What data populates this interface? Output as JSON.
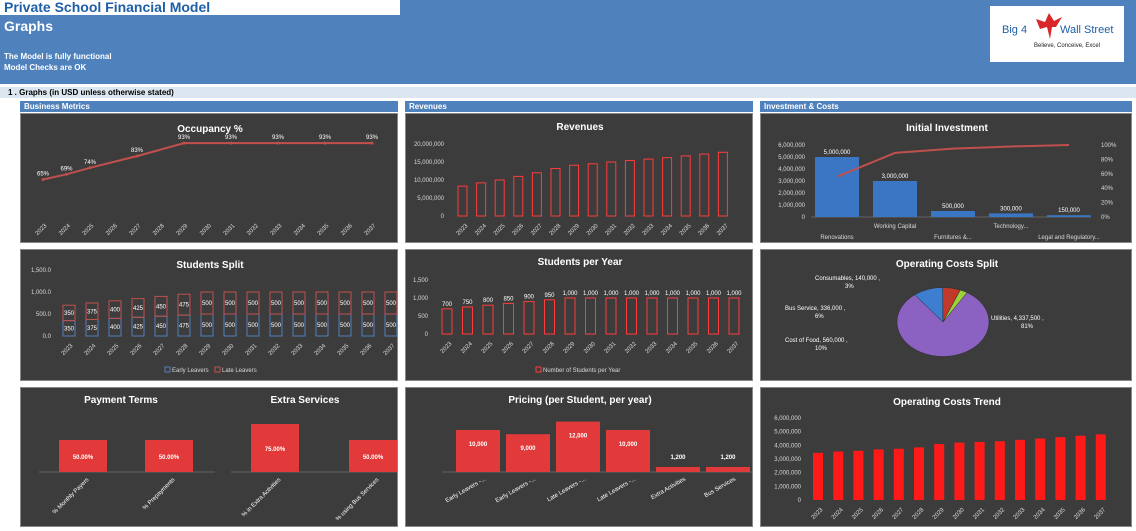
{
  "header": {
    "app_title": "Private School Financial Model",
    "page_title": "Graphs",
    "status_1": "The Model is fully functional",
    "status_2": "Model Checks are OK",
    "logo_left": "Big 4",
    "logo_right": "Wall Street",
    "logo_tagline": "Believe, Conceive, Excel"
  },
  "section_title": "1 .  Graphs (in USD unless otherwise stated)",
  "group_labels": {
    "business": "Business Metrics",
    "revenues": "Revenues",
    "investment": "Investment & Costs"
  },
  "years": [
    "2023",
    "2024",
    "2025",
    "2026",
    "2027",
    "2028",
    "2029",
    "2030",
    "2031",
    "2032",
    "2033",
    "2034",
    "2035",
    "2036",
    "2037"
  ],
  "chart_data": [
    {
      "id": "occupancy",
      "type": "line",
      "title": "Occupancy %",
      "x": [
        "2023",
        "2024",
        "2025",
        "2026",
        "2027",
        "2028",
        "2029",
        "2030",
        "2031",
        "2032",
        "2033",
        "2034",
        "2035",
        "2036",
        "2037"
      ],
      "series": [
        {
          "values": [
            65,
            69,
            74,
            null,
            83,
            null,
            93,
            null,
            93,
            null,
            93,
            null,
            93,
            null,
            93
          ],
          "labels": [
            "65%",
            "69%",
            "74%",
            "",
            "83%",
            "",
            "93%",
            "",
            "93%",
            "",
            "93%",
            "",
            "93%",
            "",
            "93%"
          ]
        }
      ],
      "color": "#c0504d"
    },
    {
      "id": "revenues",
      "type": "bar",
      "title": "Revenues",
      "x": [
        "2023",
        "2024",
        "2025",
        "2026",
        "2027",
        "2028",
        "2029",
        "2030",
        "2031",
        "2032",
        "2033",
        "2034",
        "2035",
        "2036",
        "2037"
      ],
      "values": [
        8300000,
        9200000,
        10000000,
        11000000,
        12000000,
        13200000,
        14100000,
        14500000,
        15000000,
        15400000,
        15800000,
        16200000,
        16700000,
        17200000,
        17700000
      ],
      "y_ticks": [
        "20,000,000",
        "15,000,000",
        "10,000,000",
        "5,000,000",
        "0"
      ],
      "ylim": [
        0,
        20000000
      ],
      "color": "#ff3b3b"
    },
    {
      "id": "initial_investment",
      "type": "bar",
      "title": "Initial Investment",
      "categories": [
        "Renovations",
        "Working Capital",
        "Furnitures &...",
        "Technology...",
        "Legal and Regulatory..."
      ],
      "values": [
        5000000,
        3000000,
        500000,
        300000,
        150000
      ],
      "value_labels": [
        "5,000,000",
        "3,000,000",
        "500,000",
        "300,000",
        "150,000"
      ],
      "cumulative_pct": [
        56,
        89,
        95,
        98,
        100
      ],
      "y_ticks": [
        "6,000,000",
        "5,000,000",
        "4,000,000",
        "3,000,000",
        "2,000,000",
        "1,000,000",
        "0"
      ],
      "y2_ticks": [
        "100%",
        "80%",
        "60%",
        "40%",
        "20%",
        "0%"
      ],
      "ylim": [
        0,
        6000000
      ],
      "color": "#3a76c4"
    },
    {
      "id": "students_split",
      "type": "bar",
      "title": "Students Split",
      "x": [
        "2023",
        "2024",
        "2025",
        "2026",
        "2027",
        "2028",
        "2029",
        "2030",
        "2031",
        "2032",
        "2033",
        "2034",
        "2035",
        "2036",
        "2037"
      ],
      "series": [
        {
          "name": "Early Leavers",
          "values": [
            350,
            375,
            400,
            425,
            450,
            475,
            500,
            500,
            500,
            500,
            500,
            500,
            500,
            500,
            500
          ]
        },
        {
          "name": "Late Leavers",
          "values": [
            350,
            375,
            400,
            425,
            450,
            475,
            500,
            500,
            500,
            500,
            500,
            500,
            500,
            500,
            500
          ]
        }
      ],
      "y_ticks": [
        "1,500.0",
        "1,000.0",
        "500.0",
        "0.0"
      ],
      "ylim": [
        0,
        1500
      ]
    },
    {
      "id": "students_per_year",
      "type": "bar",
      "title": "Students per Year",
      "x": [
        "2023",
        "2024",
        "2025",
        "2026",
        "2027",
        "2028",
        "2029",
        "2030",
        "2031",
        "2032",
        "2033",
        "2034",
        "2035",
        "2036",
        "2037"
      ],
      "series": [
        {
          "name": "Number of Students per Year",
          "values": [
            700,
            750,
            800,
            850,
            900,
            950,
            1000,
            1000,
            1000,
            1000,
            1000,
            1000,
            1000,
            1000,
            1000
          ]
        }
      ],
      "value_labels": [
        "700",
        "750",
        "800",
        "850",
        "900",
        "950",
        "1,000",
        "1,000",
        "1,000",
        "1,000",
        "1,000",
        "1,000",
        "1,000",
        "1,000",
        "1,000"
      ],
      "y_ticks": [
        "1,500",
        "1,000",
        "500",
        "0"
      ],
      "ylim": [
        0,
        1500
      ]
    },
    {
      "id": "operating_costs_split",
      "type": "pie",
      "title": "Operating Costs Split",
      "slices": [
        {
          "label": "Utilities, 4,337,500 , 81%",
          "value": 4337500,
          "color": "#8b62c2"
        },
        {
          "label": "Cost of Food, 560,000 , 10%",
          "value": 560000,
          "color": "#3d7ed1"
        },
        {
          "label": "Bus Service, 336,000 , 6%",
          "value": 336000,
          "color": "#c0392b"
        },
        {
          "label": "Consumables, 140,000 , 3%",
          "value": 140000,
          "color": "#9bd13a"
        }
      ]
    },
    {
      "id": "payment_terms",
      "type": "bar",
      "title": "Payment Terms",
      "categories": [
        "% Monthly Payers",
        "% Prepayments"
      ],
      "values": [
        50,
        50
      ],
      "value_labels": [
        "50.00%",
        "50.00%"
      ]
    },
    {
      "id": "extra_services",
      "type": "bar",
      "title": "Extra Services",
      "categories": [
        "% in Extra Activities",
        "% using Bus Services"
      ],
      "values": [
        75,
        50
      ],
      "value_labels": [
        "75.00%",
        "50.00%"
      ]
    },
    {
      "id": "pricing",
      "type": "bar",
      "title": "Pricing (per Student, per year)",
      "categories": [
        "Early Leavers -...",
        "Early Leavers -...",
        "Late Leavers -...",
        "Late Leavers -...",
        "Extra Activities",
        "Bus Services"
      ],
      "values": [
        10000,
        9000,
        12000,
        10000,
        1200,
        1200
      ],
      "value_labels": [
        "10,000",
        "9,000",
        "12,000",
        "10,000",
        "1,200",
        "1,200"
      ]
    },
    {
      "id": "operating_costs_trend",
      "type": "bar",
      "title": "Operating Costs Trend",
      "x": [
        "2023",
        "2024",
        "2025",
        "2026",
        "2027",
        "2028",
        "2029",
        "2030",
        "2031",
        "2032",
        "2033",
        "2034",
        "2035",
        "2036",
        "2037"
      ],
      "values": [
        3450000,
        3550000,
        3600000,
        3700000,
        3750000,
        3850000,
        4100000,
        4200000,
        4250000,
        4300000,
        4400000,
        4500000,
        4600000,
        4700000,
        4800000
      ],
      "y_ticks": [
        "6,000,000",
        "5,000,000",
        "4,000,000",
        "3,000,000",
        "2,000,000",
        "1,000,000",
        "0"
      ],
      "ylim": [
        0,
        6000000
      ]
    }
  ]
}
